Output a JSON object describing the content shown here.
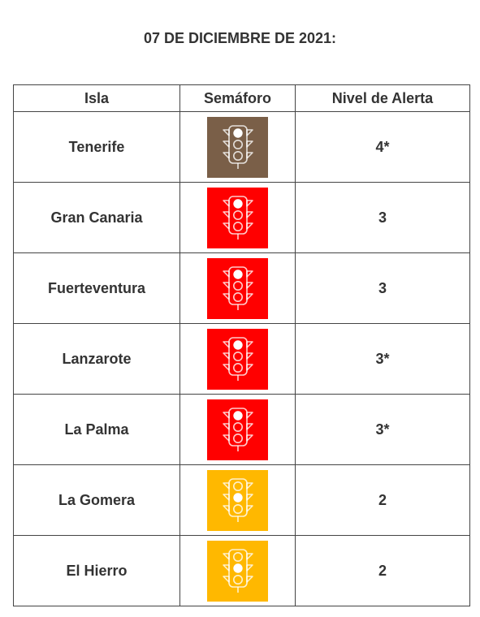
{
  "title": "07 DE DICIEMBRE DE 2021:",
  "headers": {
    "isla": "Isla",
    "semaforo": "Semáforo",
    "nivel": "Nivel de Alerta"
  },
  "level_colors": {
    "4": "#7a5f48",
    "3": "#ff0000",
    "2": "#ffb800"
  },
  "rows": [
    {
      "isla": "Tenerife",
      "nivel": "4*",
      "semaforo_color": "#7a5f48",
      "semaforo_icon": "traffic-light-icon"
    },
    {
      "isla": "Gran Canaria",
      "nivel": "3",
      "semaforo_color": "#ff0000",
      "semaforo_icon": "traffic-light-icon"
    },
    {
      "isla": "Fuerteventura",
      "nivel": "3",
      "semaforo_color": "#ff0000",
      "semaforo_icon": "traffic-light-icon"
    },
    {
      "isla": "Lanzarote",
      "nivel": "3*",
      "semaforo_color": "#ff0000",
      "semaforo_icon": "traffic-light-icon"
    },
    {
      "isla": "La Palma",
      "nivel": "3*",
      "semaforo_color": "#ff0000",
      "semaforo_icon": "traffic-light-icon"
    },
    {
      "isla": "La Gomera",
      "nivel": "2",
      "semaforo_color": "#ffb800",
      "semaforo_icon": "traffic-light-icon"
    },
    {
      "isla": "El Hierro",
      "nivel": "2",
      "semaforo_color": "#ffb800",
      "semaforo_icon": "traffic-light-icon"
    }
  ]
}
